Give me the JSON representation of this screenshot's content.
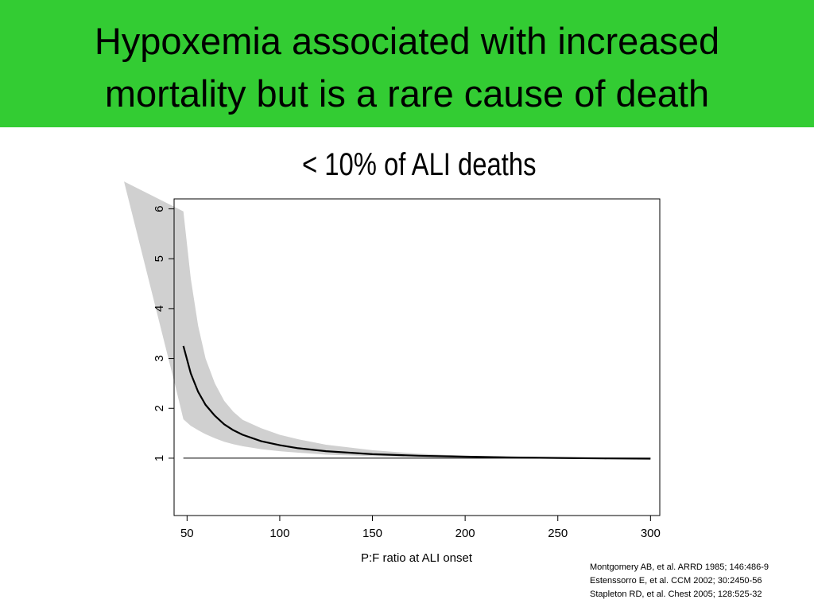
{
  "title": {
    "line1": "Hypoxemia associated with increased",
    "line2": "mortality but is a rare cause of death",
    "bg_color": "#33cc33"
  },
  "subtitle": "< 10% of ALI deaths",
  "references": [
    "Montgomery AB, et al. ARRD 1985; 146:486-9",
    "Estenssorro E, et al. CCM 2002; 30:2450-56",
    "Stapleton RD, et al. Chest 2005; 128:525-32"
  ],
  "chart_data": {
    "type": "line",
    "xlabel": "P:F ratio at ALI onset",
    "ylabel": "",
    "xlim": [
      43,
      305
    ],
    "ylim": [
      -0.15,
      6.2
    ],
    "x_ticks": [
      50,
      100,
      150,
      200,
      250,
      300
    ],
    "y_ticks": [
      1,
      2,
      3,
      4,
      5,
      6
    ],
    "reference_line_y": 1,
    "series": [
      {
        "values": [
          {
            "x": 48,
            "y": 3.25
          },
          {
            "x": 52,
            "y": 2.7
          },
          {
            "x": 56,
            "y": 2.33
          },
          {
            "x": 60,
            "y": 2.07
          },
          {
            "x": 65,
            "y": 1.85
          },
          {
            "x": 70,
            "y": 1.68
          },
          {
            "x": 75,
            "y": 1.56
          },
          {
            "x": 80,
            "y": 1.47
          },
          {
            "x": 90,
            "y": 1.34
          },
          {
            "x": 100,
            "y": 1.26
          },
          {
            "x": 110,
            "y": 1.2
          },
          {
            "x": 125,
            "y": 1.14
          },
          {
            "x": 150,
            "y": 1.08
          },
          {
            "x": 175,
            "y": 1.05
          },
          {
            "x": 200,
            "y": 1.03
          },
          {
            "x": 225,
            "y": 1.015
          },
          {
            "x": 250,
            "y": 1.005
          },
          {
            "x": 275,
            "y": 0.995
          },
          {
            "x": 300,
            "y": 0.99
          }
        ],
        "color": "#000000"
      }
    ],
    "confidence_band": {
      "upper": [
        {
          "x": 48,
          "y": 5.95
        },
        {
          "x": 52,
          "y": 4.6
        },
        {
          "x": 56,
          "y": 3.65
        },
        {
          "x": 60,
          "y": 3.0
        },
        {
          "x": 65,
          "y": 2.5
        },
        {
          "x": 70,
          "y": 2.15
        },
        {
          "x": 75,
          "y": 1.93
        },
        {
          "x": 80,
          "y": 1.77
        },
        {
          "x": 90,
          "y": 1.6
        },
        {
          "x": 100,
          "y": 1.47
        },
        {
          "x": 110,
          "y": 1.38
        },
        {
          "x": 125,
          "y": 1.27
        },
        {
          "x": 150,
          "y": 1.16
        },
        {
          "x": 175,
          "y": 1.09
        },
        {
          "x": 200,
          "y": 1.05
        },
        {
          "x": 225,
          "y": 1.03
        },
        {
          "x": 250,
          "y": 1.01
        },
        {
          "x": 275,
          "y": 1.0
        },
        {
          "x": 300,
          "y": 0.99
        }
      ],
      "lower": [
        {
          "x": 48,
          "y": 1.78
        },
        {
          "x": 52,
          "y": 1.65
        },
        {
          "x": 56,
          "y": 1.56
        },
        {
          "x": 60,
          "y": 1.48
        },
        {
          "x": 65,
          "y": 1.4
        },
        {
          "x": 70,
          "y": 1.33
        },
        {
          "x": 75,
          "y": 1.28
        },
        {
          "x": 80,
          "y": 1.24
        },
        {
          "x": 90,
          "y": 1.18
        },
        {
          "x": 100,
          "y": 1.14
        },
        {
          "x": 110,
          "y": 1.11
        },
        {
          "x": 125,
          "y": 1.07
        },
        {
          "x": 150,
          "y": 1.04
        },
        {
          "x": 175,
          "y": 1.02
        },
        {
          "x": 200,
          "y": 1.01
        },
        {
          "x": 225,
          "y": 1.0
        },
        {
          "x": 250,
          "y": 0.995
        },
        {
          "x": 275,
          "y": 0.99
        },
        {
          "x": 300,
          "y": 0.99
        }
      ],
      "upper_extension": [
        {
          "x": 16,
          "y": 6.55
        },
        {
          "x": 48,
          "y": 5.95
        }
      ],
      "color": "#d0d0d0"
    },
    "grid": false,
    "legend": "none"
  }
}
